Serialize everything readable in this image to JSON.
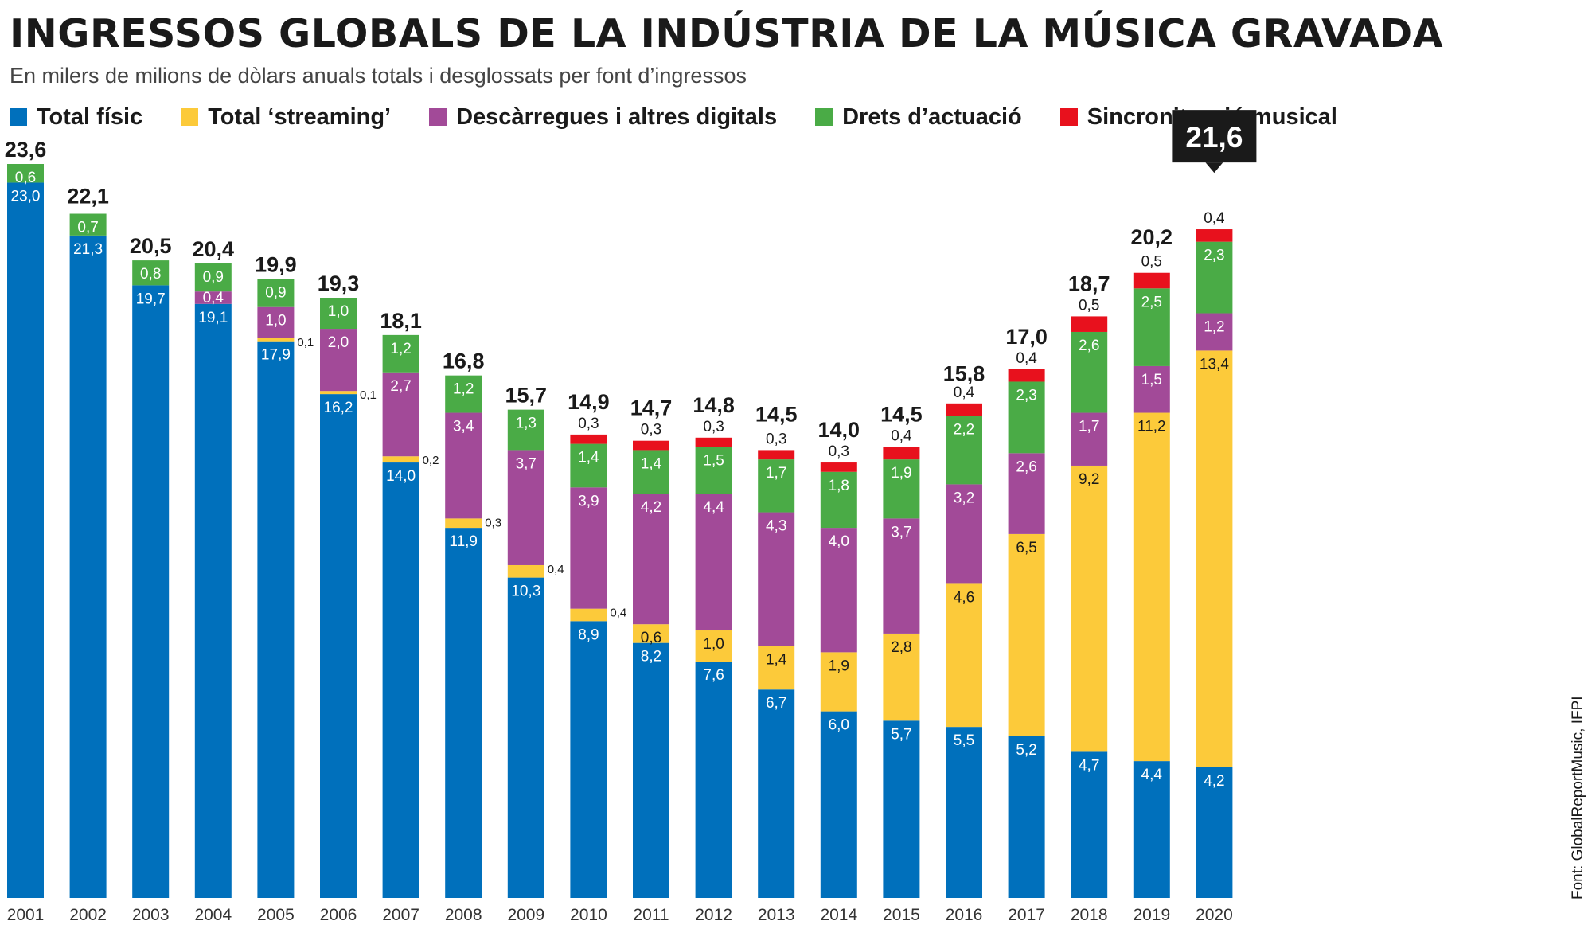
{
  "title": "INGRESSOS GLOBALS DE LA INDÚSTRIA DE LA MÚSICA GRAVADA",
  "subtitle": "En milers de milions de dòlars anuals totals i desglossats per font d’ingressos",
  "source": "Font: GlobalReportMusic, IFPI",
  "colors": {
    "physical": "#0070bc",
    "streaming": "#fcca3a",
    "downloads": "#a24a98",
    "performance": "#4aab46",
    "sync": "#e8111d",
    "callout_bg": "#1a1a1a",
    "callout_text": "#ffffff"
  },
  "chart_data": {
    "type": "bar",
    "stacked": true,
    "title": "INGRESSOS GLOBALS DE LA INDÚSTRIA DE LA MÚSICA GRAVADA",
    "xlabel": "",
    "ylabel": "",
    "ylim": [
      0,
      23.6
    ],
    "grid": false,
    "legend_position": "top-left",
    "categories": [
      "2001",
      "2002",
      "2003",
      "2004",
      "2005",
      "2006",
      "2007",
      "2008",
      "2009",
      "2010",
      "2011",
      "2012",
      "2013",
      "2014",
      "2015",
      "2016",
      "2017",
      "2018",
      "2019",
      "2020"
    ],
    "series": [
      {
        "key": "physical",
        "name": "Total físic",
        "color": "#0070bc",
        "values": [
          23.0,
          21.3,
          19.7,
          19.1,
          17.9,
          16.2,
          14.0,
          11.9,
          10.3,
          8.9,
          8.2,
          7.6,
          6.7,
          6.0,
          5.7,
          5.5,
          5.2,
          4.7,
          4.4,
          4.2
        ],
        "labels": [
          "23,0",
          "21,3",
          "19,7",
          "19,1",
          "17,9",
          "16,2",
          "14,0",
          "11,9",
          "10,3",
          "8,9",
          "8,2",
          "7,6",
          "6,7",
          "6,0",
          "5,7",
          "5,5",
          "5,2",
          "4,7",
          "4,4",
          "4,2"
        ]
      },
      {
        "key": "streaming",
        "name": "Total ‘streaming’",
        "color": "#fcca3a",
        "values": [
          0,
          0,
          0,
          0,
          0.1,
          0.1,
          0.2,
          0.3,
          0.4,
          0.4,
          0.6,
          1.0,
          1.4,
          1.9,
          2.8,
          4.6,
          6.5,
          9.2,
          11.2,
          13.4
        ],
        "labels": [
          "",
          "",
          "",
          "",
          "0,1",
          "0,1",
          "0,2",
          "0,3",
          "0,4",
          "0,4",
          "0,6",
          "1,0",
          "1,4",
          "1,9",
          "2,8",
          "4,6",
          "6,5",
          "9,2",
          "11,2",
          "13,4"
        ]
      },
      {
        "key": "downloads",
        "name": "Descàrregues i altres digitals",
        "color": "#a24a98",
        "values": [
          0,
          0,
          0,
          0.4,
          1.0,
          2.0,
          2.7,
          3.4,
          3.7,
          3.9,
          4.2,
          4.4,
          4.3,
          4.0,
          3.7,
          3.2,
          2.6,
          1.7,
          1.5,
          1.2
        ],
        "labels": [
          "",
          "",
          "",
          "0,4",
          "1,0",
          "2,0",
          "2,7",
          "3,4",
          "3,7",
          "3,9",
          "4,2",
          "4,4",
          "4,3",
          "4,0",
          "3,7",
          "3,2",
          "2,6",
          "1,7",
          "1,5",
          "1,2"
        ]
      },
      {
        "key": "performance",
        "name": "Drets d’actuació",
        "color": "#4aab46",
        "values": [
          0.6,
          0.7,
          0.8,
          0.9,
          0.9,
          1.0,
          1.2,
          1.2,
          1.3,
          1.4,
          1.4,
          1.5,
          1.7,
          1.8,
          1.9,
          2.2,
          2.3,
          2.6,
          2.5,
          2.3
        ],
        "labels": [
          "0,6",
          "0,7",
          "0,8",
          "0,9",
          "0,9",
          "1,0",
          "1,2",
          "1,2",
          "1,3",
          "1,4",
          "1,4",
          "1,5",
          "1,7",
          "1,8",
          "1,9",
          "2,2",
          "2,3",
          "2,6",
          "2,5",
          "2,3"
        ]
      },
      {
        "key": "sync",
        "name": "Sincronització musical",
        "color": "#e8111d",
        "values": [
          0,
          0,
          0,
          0,
          0,
          0,
          0,
          0,
          0,
          0.3,
          0.3,
          0.3,
          0.3,
          0.3,
          0.4,
          0.4,
          0.4,
          0.5,
          0.5,
          0.4
        ],
        "labels": [
          "",
          "",
          "",
          "",
          "",
          "",
          "",
          "",
          "",
          "0,3",
          "0,3",
          "0,3",
          "0,3",
          "0,3",
          "0,4",
          "0,4",
          "0,4",
          "0,5",
          "0,5",
          "0,4"
        ]
      }
    ],
    "totals": [
      23.6,
      22.1,
      20.5,
      20.4,
      19.9,
      19.3,
      18.1,
      16.8,
      15.7,
      14.9,
      14.7,
      14.8,
      14.5,
      14.0,
      14.5,
      15.8,
      17.0,
      18.7,
      20.2,
      21.6
    ],
    "total_labels": [
      "23,6",
      "22,1",
      "20,5",
      "20,4",
      "19,9",
      "19,3",
      "18,1",
      "16,8",
      "15,7",
      "14,9",
      "14,7",
      "14,8",
      "14,5",
      "14,0",
      "14,5",
      "15,8",
      "17,0",
      "18,7",
      "20,2",
      "21,6"
    ],
    "highlight": {
      "category": "2020",
      "label": "21,6"
    }
  }
}
